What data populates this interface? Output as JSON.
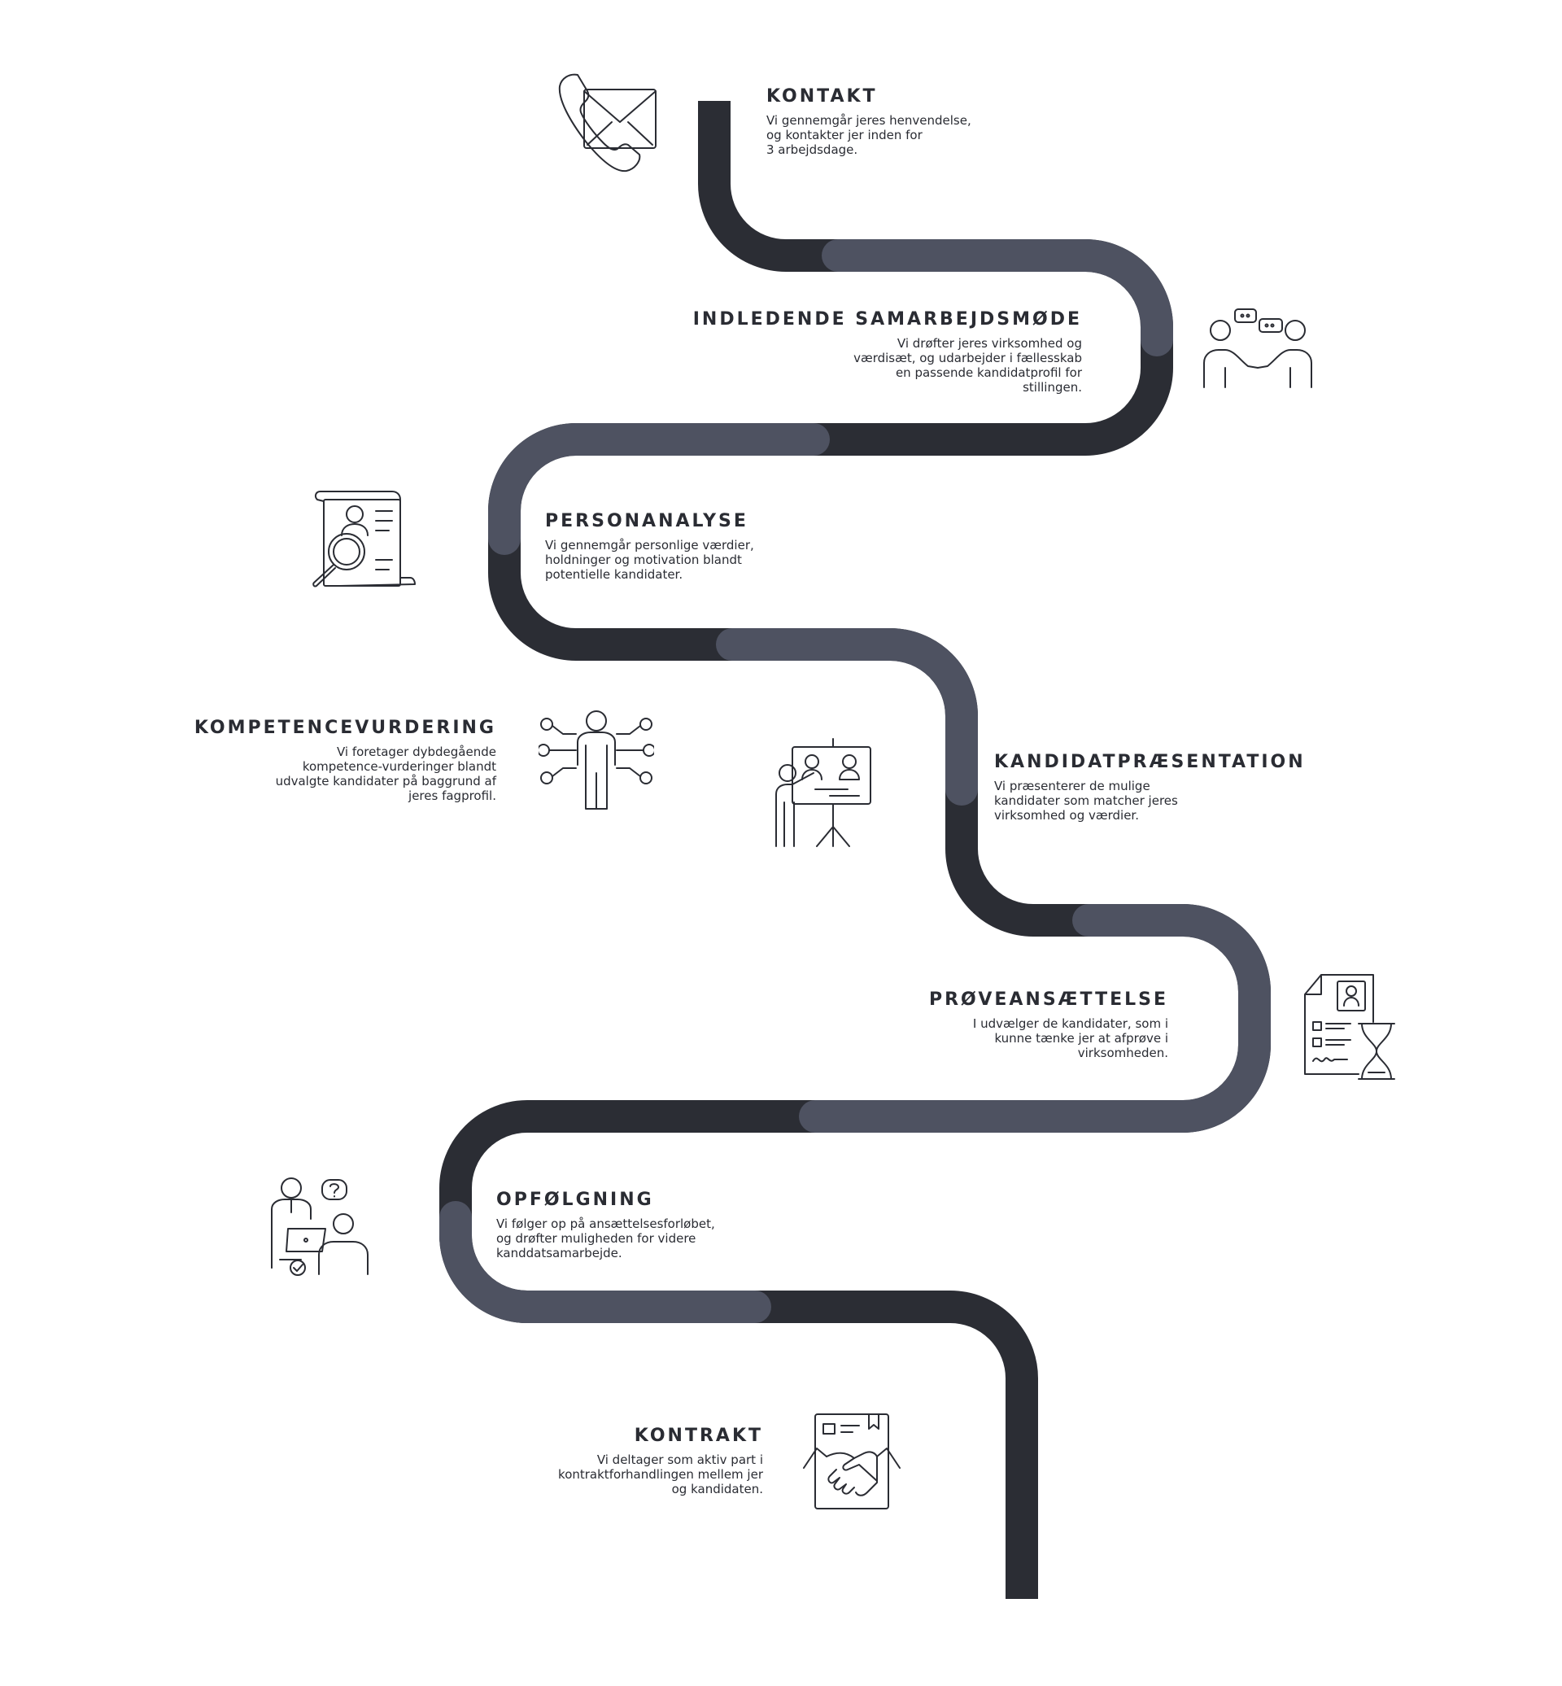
{
  "colors": {
    "path_dark": "#2b2d34",
    "path_light": "#4e5261",
    "text": "#2a2c33",
    "background": "#ffffff"
  },
  "steps": [
    {
      "icon": "phone-envelope-icon",
      "title": "KONTAKT",
      "description": "Vi gennemgår jeres henvendelse,\nog kontakter jer inden for\n3 arbejdsdage."
    },
    {
      "icon": "meeting-handshake-icon",
      "title": "INDLEDENDE SAMARBEJDSMØDE",
      "description": "Vi drøfter jeres virksomhed og\nværdisæt, og udarbejder i fællesskab\nen passende kandidatprofil for\nstillingen."
    },
    {
      "icon": "cv-magnifier-icon",
      "title": "PERSONANALYSE",
      "description": "Vi gennemgår personlige værdier,\nholdninger og motivation blandt\npotentielle kandidater."
    },
    {
      "icon": "person-network-icon",
      "title": "KOMPETENCEVURDERING",
      "description": "Vi foretager dybdegående\nkompetence-vurderinger blandt\nudvalgte kandidater på baggrund af\njeres fagprofil."
    },
    {
      "icon": "presentation-board-icon",
      "title": "KANDIDATPRÆSENTATION",
      "description": "Vi præsenterer de mulige\nkandidater som matcher jeres\nvirksomhed og værdier."
    },
    {
      "icon": "document-hourglass-icon",
      "title": "PRØVEANSÆTTELSE",
      "description": "I udvælger de kandidater, som i\nkunne tænke jer at afprøve i\nvirksomheden."
    },
    {
      "icon": "followup-people-icon",
      "title": "OPFØLGNING",
      "description": "Vi følger op på ansættelsesforløbet,\nog drøfter muligheden for videre\nkanddatsamarbejde."
    },
    {
      "icon": "contract-handshake-icon",
      "title": "KONTRAKT",
      "description": "Vi deltager som aktiv part i\nkontraktforhandlingen mellem jer\nog kandidaten."
    }
  ]
}
